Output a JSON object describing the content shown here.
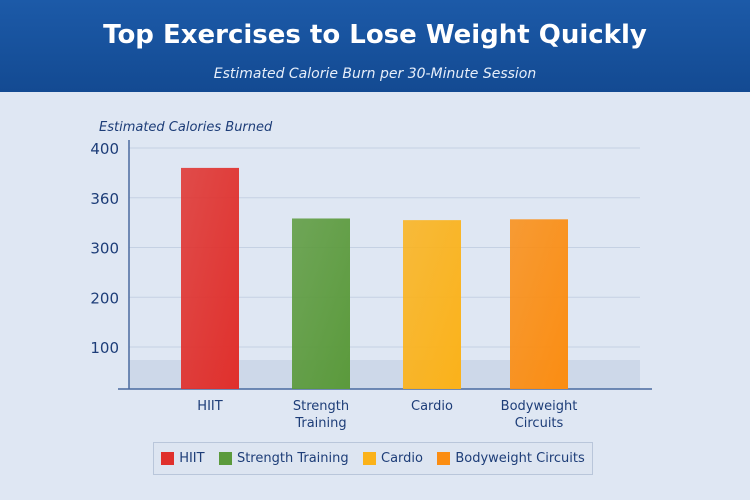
{
  "header": {
    "title": "Top Exercises to Lose Weight Quickly",
    "subtitle": "Estimated Calorie Burn per 30-Minute Session"
  },
  "chart_data": {
    "type": "bar",
    "title": "Top Exercises to Lose Weight Quickly",
    "subtitle": "Estimated Calorie Burn per 30-Minute Session",
    "ylabel": "Estimated Calories Burned",
    "xlabel": "",
    "categories": [
      "HIIT",
      "Strength Training",
      "Cardio",
      "Bodyweight Circuits"
    ],
    "category_labels": [
      [
        "HIIT"
      ],
      [
        "Strength",
        "Training"
      ],
      [
        "Cardio"
      ],
      [
        "Bodyweight",
        "Circuits"
      ]
    ],
    "values": [
      384,
      335,
      333,
      334
    ],
    "yticks": [
      100,
      200,
      300,
      360,
      400
    ],
    "ylim": [
      0,
      400
    ],
    "grid": true,
    "colors": [
      "#e0302c",
      "#5b9a3c",
      "#fbb21a",
      "#fb8d12"
    ],
    "legend": {
      "position": "bottom",
      "entries": [
        "HIIT",
        "Strength Training",
        "Cardio",
        "Bodyweight Circuits"
      ]
    }
  }
}
